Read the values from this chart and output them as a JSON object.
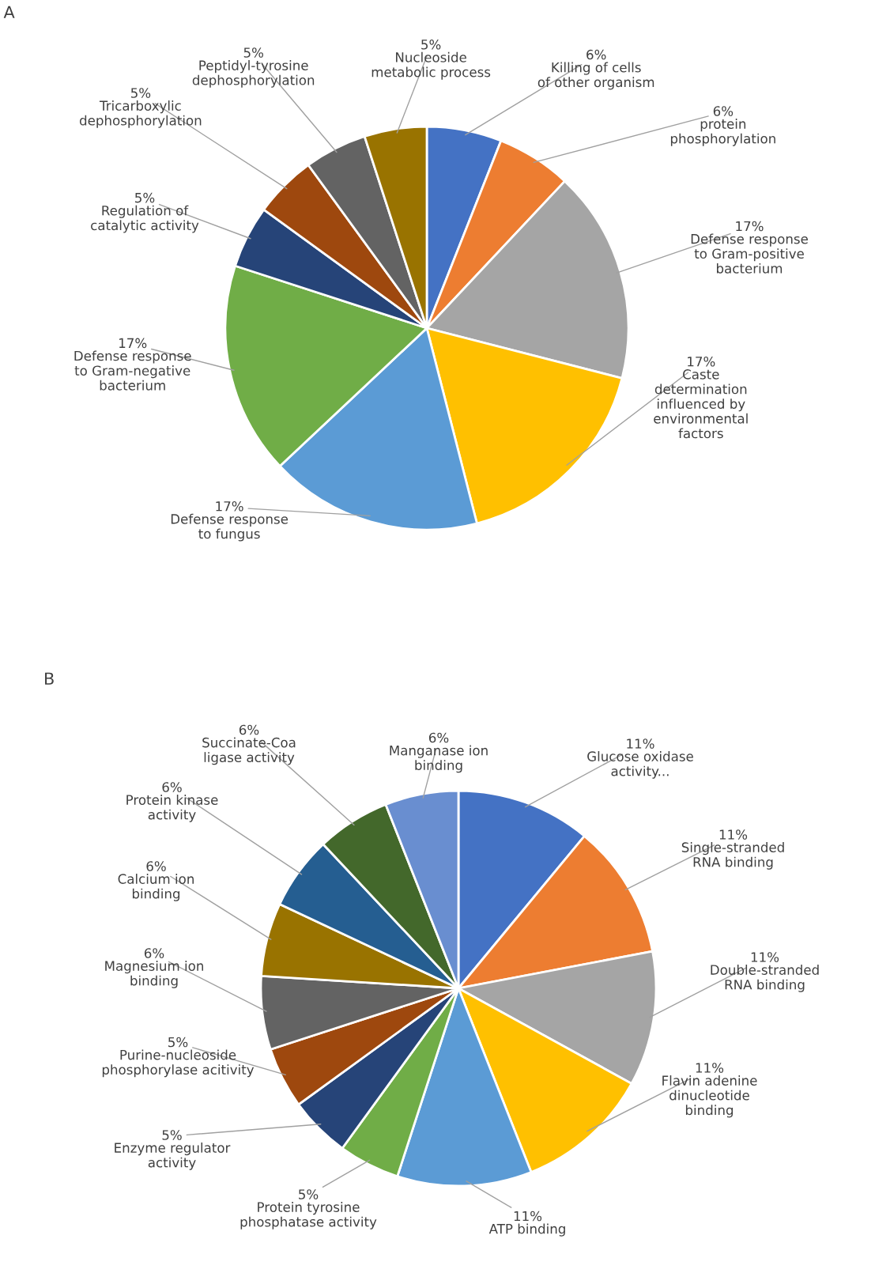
{
  "chart_data": [
    {
      "type": "pie",
      "annotations": [
        "A"
      ],
      "categories": [
        "Killing of cells\nof other organism",
        "protein\nphosphorylation",
        "Defense response\nto Gram-positive\nbacterium",
        "Caste\ndetermination\ninfluenced by\nenvironmental\nfactors",
        "Defense response\nto fungus",
        "Defense response\nto Gram-negative\nbacterium",
        "Regulation of\ncatalytic activity",
        "Tricarboxylic\ndephosphorylation",
        "Peptidyl-tyrosine\ndephosphorylation",
        "Nucleoside\nmetabolic process"
      ],
      "values": [
        6,
        6,
        17,
        17,
        17,
        17,
        5,
        5,
        5,
        5
      ],
      "value_labels": [
        "6%",
        "6%",
        "17%",
        "17%",
        "17%",
        "17%",
        "5%",
        "5%",
        "5%",
        "5%"
      ],
      "colors": [
        "#4472c4",
        "#ed7d31",
        "#a5a5a5",
        "#ffc000",
        "#5b9bd5",
        "#70ad47",
        "#264478",
        "#9e480e",
        "#636363",
        "#997300"
      ]
    },
    {
      "type": "pie",
      "annotations": [
        "B"
      ],
      "categories": [
        "Glucose oxidase\nactivity...",
        "Single-stranded\nRNA binding",
        "Double-stranded\nRNA binding",
        "Flavin adenine\ndinucleotide\nbinding",
        "ATP binding",
        "Protein tyrosine\nphosphatase activity",
        "Enzyme regulator\nactivity",
        "Purine-nucleoside\nphosphorylase acitivity",
        "Magnesium ion\nbinding",
        "Calcium ion\nbinding",
        "Protein kinase\nactivity",
        "Succinate-Coa\nligase activity",
        "Manganase ion\nbinding"
      ],
      "values": [
        11,
        11,
        11,
        11,
        11,
        5,
        5,
        5,
        6,
        6,
        6,
        6,
        6
      ],
      "value_labels": [
        "11%",
        "11%",
        "11%",
        "11%",
        "11%",
        "5%",
        "5%",
        "5%",
        "6%",
        "6%",
        "6%",
        "6%",
        "6%"
      ],
      "colors": [
        "#4472c4",
        "#ed7d31",
        "#a5a5a5",
        "#ffc000",
        "#5b9bd5",
        "#70ad47",
        "#264478",
        "#9e480e",
        "#636363",
        "#997300",
        "#255e91",
        "#43682b",
        "#698ed0"
      ]
    }
  ]
}
